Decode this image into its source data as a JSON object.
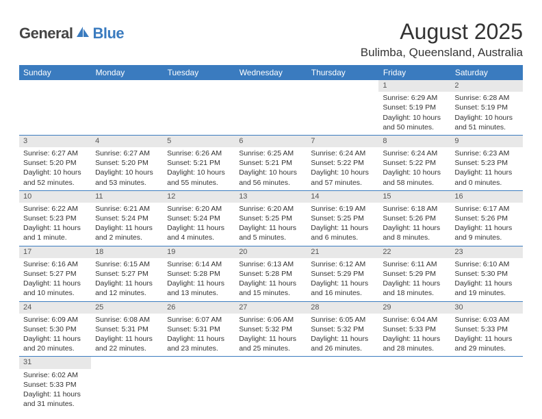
{
  "brand": {
    "part1": "General",
    "part2": "Blue",
    "part1_color": "#444444",
    "part2_color": "#3a7bbf",
    "icon_color": "#3a7bbf"
  },
  "title": "August 2025",
  "location": "Bulimba, Queensland, Australia",
  "header_bg": "#3a7bbf",
  "header_text_color": "#ffffff",
  "daynum_bg": "#e8e8e8",
  "border_color": "#3a7bbf",
  "text_color": "#333333",
  "font_family": "Arial",
  "title_fontsize": 32,
  "location_fontsize": 17,
  "dayhead_fontsize": 12,
  "body_fontsize": 10.5,
  "day_headers": [
    "Sunday",
    "Monday",
    "Tuesday",
    "Wednesday",
    "Thursday",
    "Friday",
    "Saturday"
  ],
  "weeks": [
    [
      null,
      null,
      null,
      null,
      null,
      {
        "n": "1",
        "sr": "6:29 AM",
        "ss": "5:19 PM",
        "dl": "10 hours and 50 minutes."
      },
      {
        "n": "2",
        "sr": "6:28 AM",
        "ss": "5:19 PM",
        "dl": "10 hours and 51 minutes."
      }
    ],
    [
      {
        "n": "3",
        "sr": "6:27 AM",
        "ss": "5:20 PM",
        "dl": "10 hours and 52 minutes."
      },
      {
        "n": "4",
        "sr": "6:27 AM",
        "ss": "5:20 PM",
        "dl": "10 hours and 53 minutes."
      },
      {
        "n": "5",
        "sr": "6:26 AM",
        "ss": "5:21 PM",
        "dl": "10 hours and 55 minutes."
      },
      {
        "n": "6",
        "sr": "6:25 AM",
        "ss": "5:21 PM",
        "dl": "10 hours and 56 minutes."
      },
      {
        "n": "7",
        "sr": "6:24 AM",
        "ss": "5:22 PM",
        "dl": "10 hours and 57 minutes."
      },
      {
        "n": "8",
        "sr": "6:24 AM",
        "ss": "5:22 PM",
        "dl": "10 hours and 58 minutes."
      },
      {
        "n": "9",
        "sr": "6:23 AM",
        "ss": "5:23 PM",
        "dl": "11 hours and 0 minutes."
      }
    ],
    [
      {
        "n": "10",
        "sr": "6:22 AM",
        "ss": "5:23 PM",
        "dl": "11 hours and 1 minute."
      },
      {
        "n": "11",
        "sr": "6:21 AM",
        "ss": "5:24 PM",
        "dl": "11 hours and 2 minutes."
      },
      {
        "n": "12",
        "sr": "6:20 AM",
        "ss": "5:24 PM",
        "dl": "11 hours and 4 minutes."
      },
      {
        "n": "13",
        "sr": "6:20 AM",
        "ss": "5:25 PM",
        "dl": "11 hours and 5 minutes."
      },
      {
        "n": "14",
        "sr": "6:19 AM",
        "ss": "5:25 PM",
        "dl": "11 hours and 6 minutes."
      },
      {
        "n": "15",
        "sr": "6:18 AM",
        "ss": "5:26 PM",
        "dl": "11 hours and 8 minutes."
      },
      {
        "n": "16",
        "sr": "6:17 AM",
        "ss": "5:26 PM",
        "dl": "11 hours and 9 minutes."
      }
    ],
    [
      {
        "n": "17",
        "sr": "6:16 AM",
        "ss": "5:27 PM",
        "dl": "11 hours and 10 minutes."
      },
      {
        "n": "18",
        "sr": "6:15 AM",
        "ss": "5:27 PM",
        "dl": "11 hours and 12 minutes."
      },
      {
        "n": "19",
        "sr": "6:14 AM",
        "ss": "5:28 PM",
        "dl": "11 hours and 13 minutes."
      },
      {
        "n": "20",
        "sr": "6:13 AM",
        "ss": "5:28 PM",
        "dl": "11 hours and 15 minutes."
      },
      {
        "n": "21",
        "sr": "6:12 AM",
        "ss": "5:29 PM",
        "dl": "11 hours and 16 minutes."
      },
      {
        "n": "22",
        "sr": "6:11 AM",
        "ss": "5:29 PM",
        "dl": "11 hours and 18 minutes."
      },
      {
        "n": "23",
        "sr": "6:10 AM",
        "ss": "5:30 PM",
        "dl": "11 hours and 19 minutes."
      }
    ],
    [
      {
        "n": "24",
        "sr": "6:09 AM",
        "ss": "5:30 PM",
        "dl": "11 hours and 20 minutes."
      },
      {
        "n": "25",
        "sr": "6:08 AM",
        "ss": "5:31 PM",
        "dl": "11 hours and 22 minutes."
      },
      {
        "n": "26",
        "sr": "6:07 AM",
        "ss": "5:31 PM",
        "dl": "11 hours and 23 minutes."
      },
      {
        "n": "27",
        "sr": "6:06 AM",
        "ss": "5:32 PM",
        "dl": "11 hours and 25 minutes."
      },
      {
        "n": "28",
        "sr": "6:05 AM",
        "ss": "5:32 PM",
        "dl": "11 hours and 26 minutes."
      },
      {
        "n": "29",
        "sr": "6:04 AM",
        "ss": "5:33 PM",
        "dl": "11 hours and 28 minutes."
      },
      {
        "n": "30",
        "sr": "6:03 AM",
        "ss": "5:33 PM",
        "dl": "11 hours and 29 minutes."
      }
    ],
    [
      {
        "n": "31",
        "sr": "6:02 AM",
        "ss": "5:33 PM",
        "dl": "11 hours and 31 minutes."
      },
      null,
      null,
      null,
      null,
      null,
      null
    ]
  ],
  "labels": {
    "sunrise": "Sunrise: ",
    "sunset": "Sunset: ",
    "daylight": "Daylight: "
  }
}
